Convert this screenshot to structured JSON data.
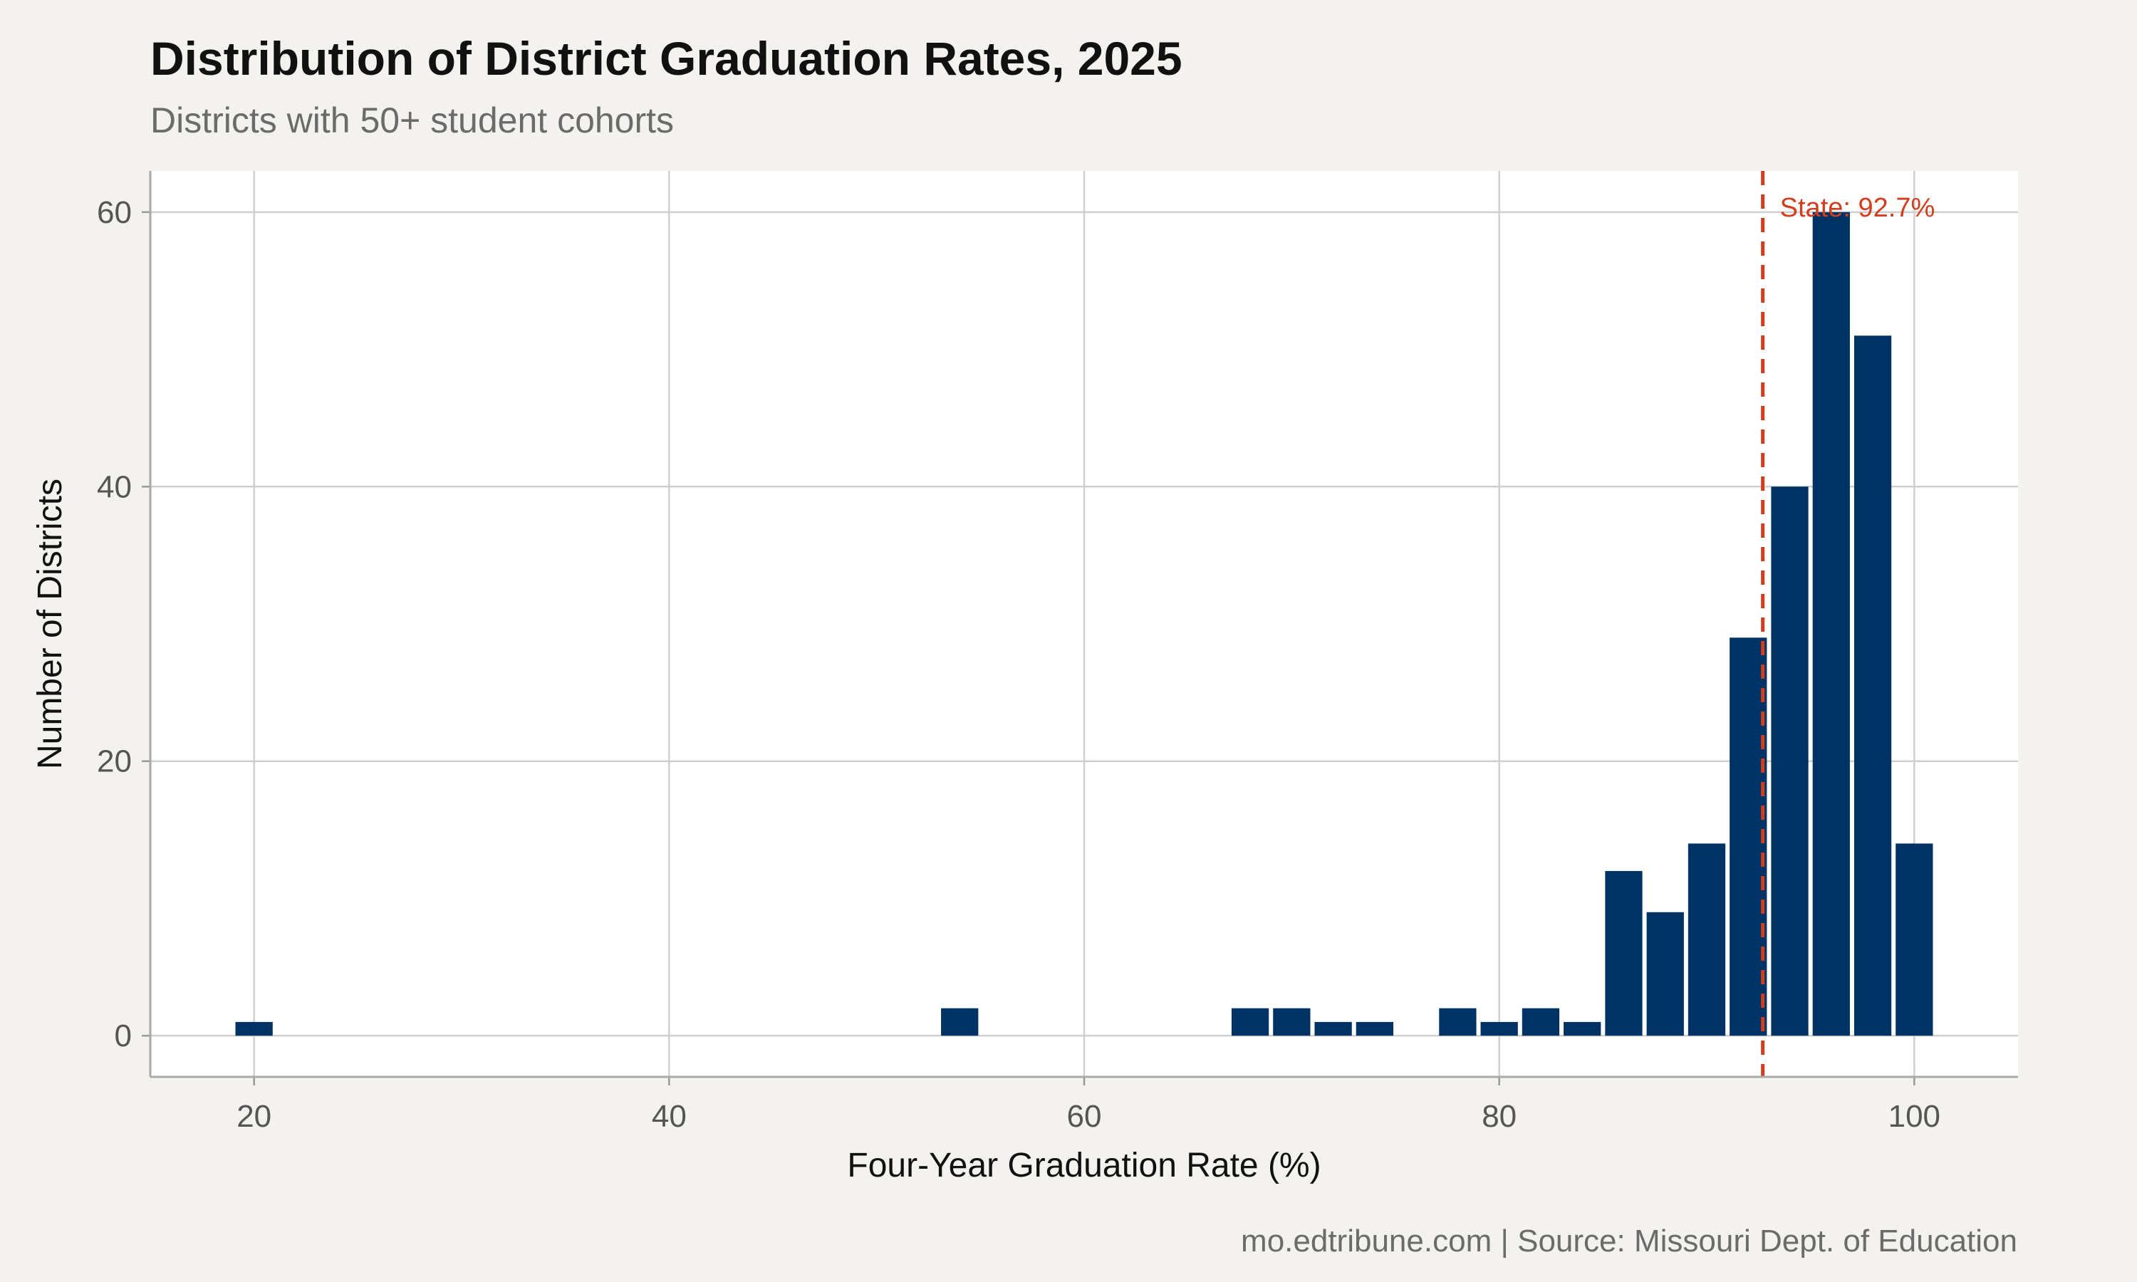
{
  "chart_data": {
    "type": "bar",
    "title": "Distribution of District Graduation Rates, 2025",
    "subtitle": "Districts with 50+ student cohorts",
    "xlabel": "Four-Year Graduation Rate (%)",
    "ylabel": "Number of Districts",
    "caption": "mo.edtribune.com | Source: Missouri Dept. of Education",
    "xlim": [
      15,
      105
    ],
    "ylim": [
      -3,
      63
    ],
    "x_ticks": [
      "20",
      "40",
      "60",
      "80",
      "100"
    ],
    "y_ticks": [
      "0",
      "20",
      "40",
      "60"
    ],
    "x_tick_values": [
      20,
      40,
      60,
      80,
      100
    ],
    "y_tick_values": [
      0,
      20,
      40,
      60
    ],
    "bin_width": 2,
    "bins": [
      {
        "x": 20,
        "count": 1
      },
      {
        "x": 54,
        "count": 2
      },
      {
        "x": 68,
        "count": 2
      },
      {
        "x": 70,
        "count": 2
      },
      {
        "x": 72,
        "count": 1
      },
      {
        "x": 74,
        "count": 1
      },
      {
        "x": 78,
        "count": 2
      },
      {
        "x": 80,
        "count": 1
      },
      {
        "x": 82,
        "count": 2
      },
      {
        "x": 84,
        "count": 1
      },
      {
        "x": 86,
        "count": 12
      },
      {
        "x": 88,
        "count": 9
      },
      {
        "x": 90,
        "count": 14
      },
      {
        "x": 92,
        "count": 29
      },
      {
        "x": 94,
        "count": 40
      },
      {
        "x": 96,
        "count": 60
      },
      {
        "x": 98,
        "count": 51
      },
      {
        "x": 100,
        "count": 14
      }
    ],
    "reference_line": {
      "x": 92.7,
      "label": "State: 92.7%"
    },
    "grid": true,
    "colors": {
      "bar": "#003263",
      "reference": "#d13e1e",
      "grid": "#cfcfcf",
      "panel": "#ffffff",
      "background": "#f4f2ee"
    }
  }
}
